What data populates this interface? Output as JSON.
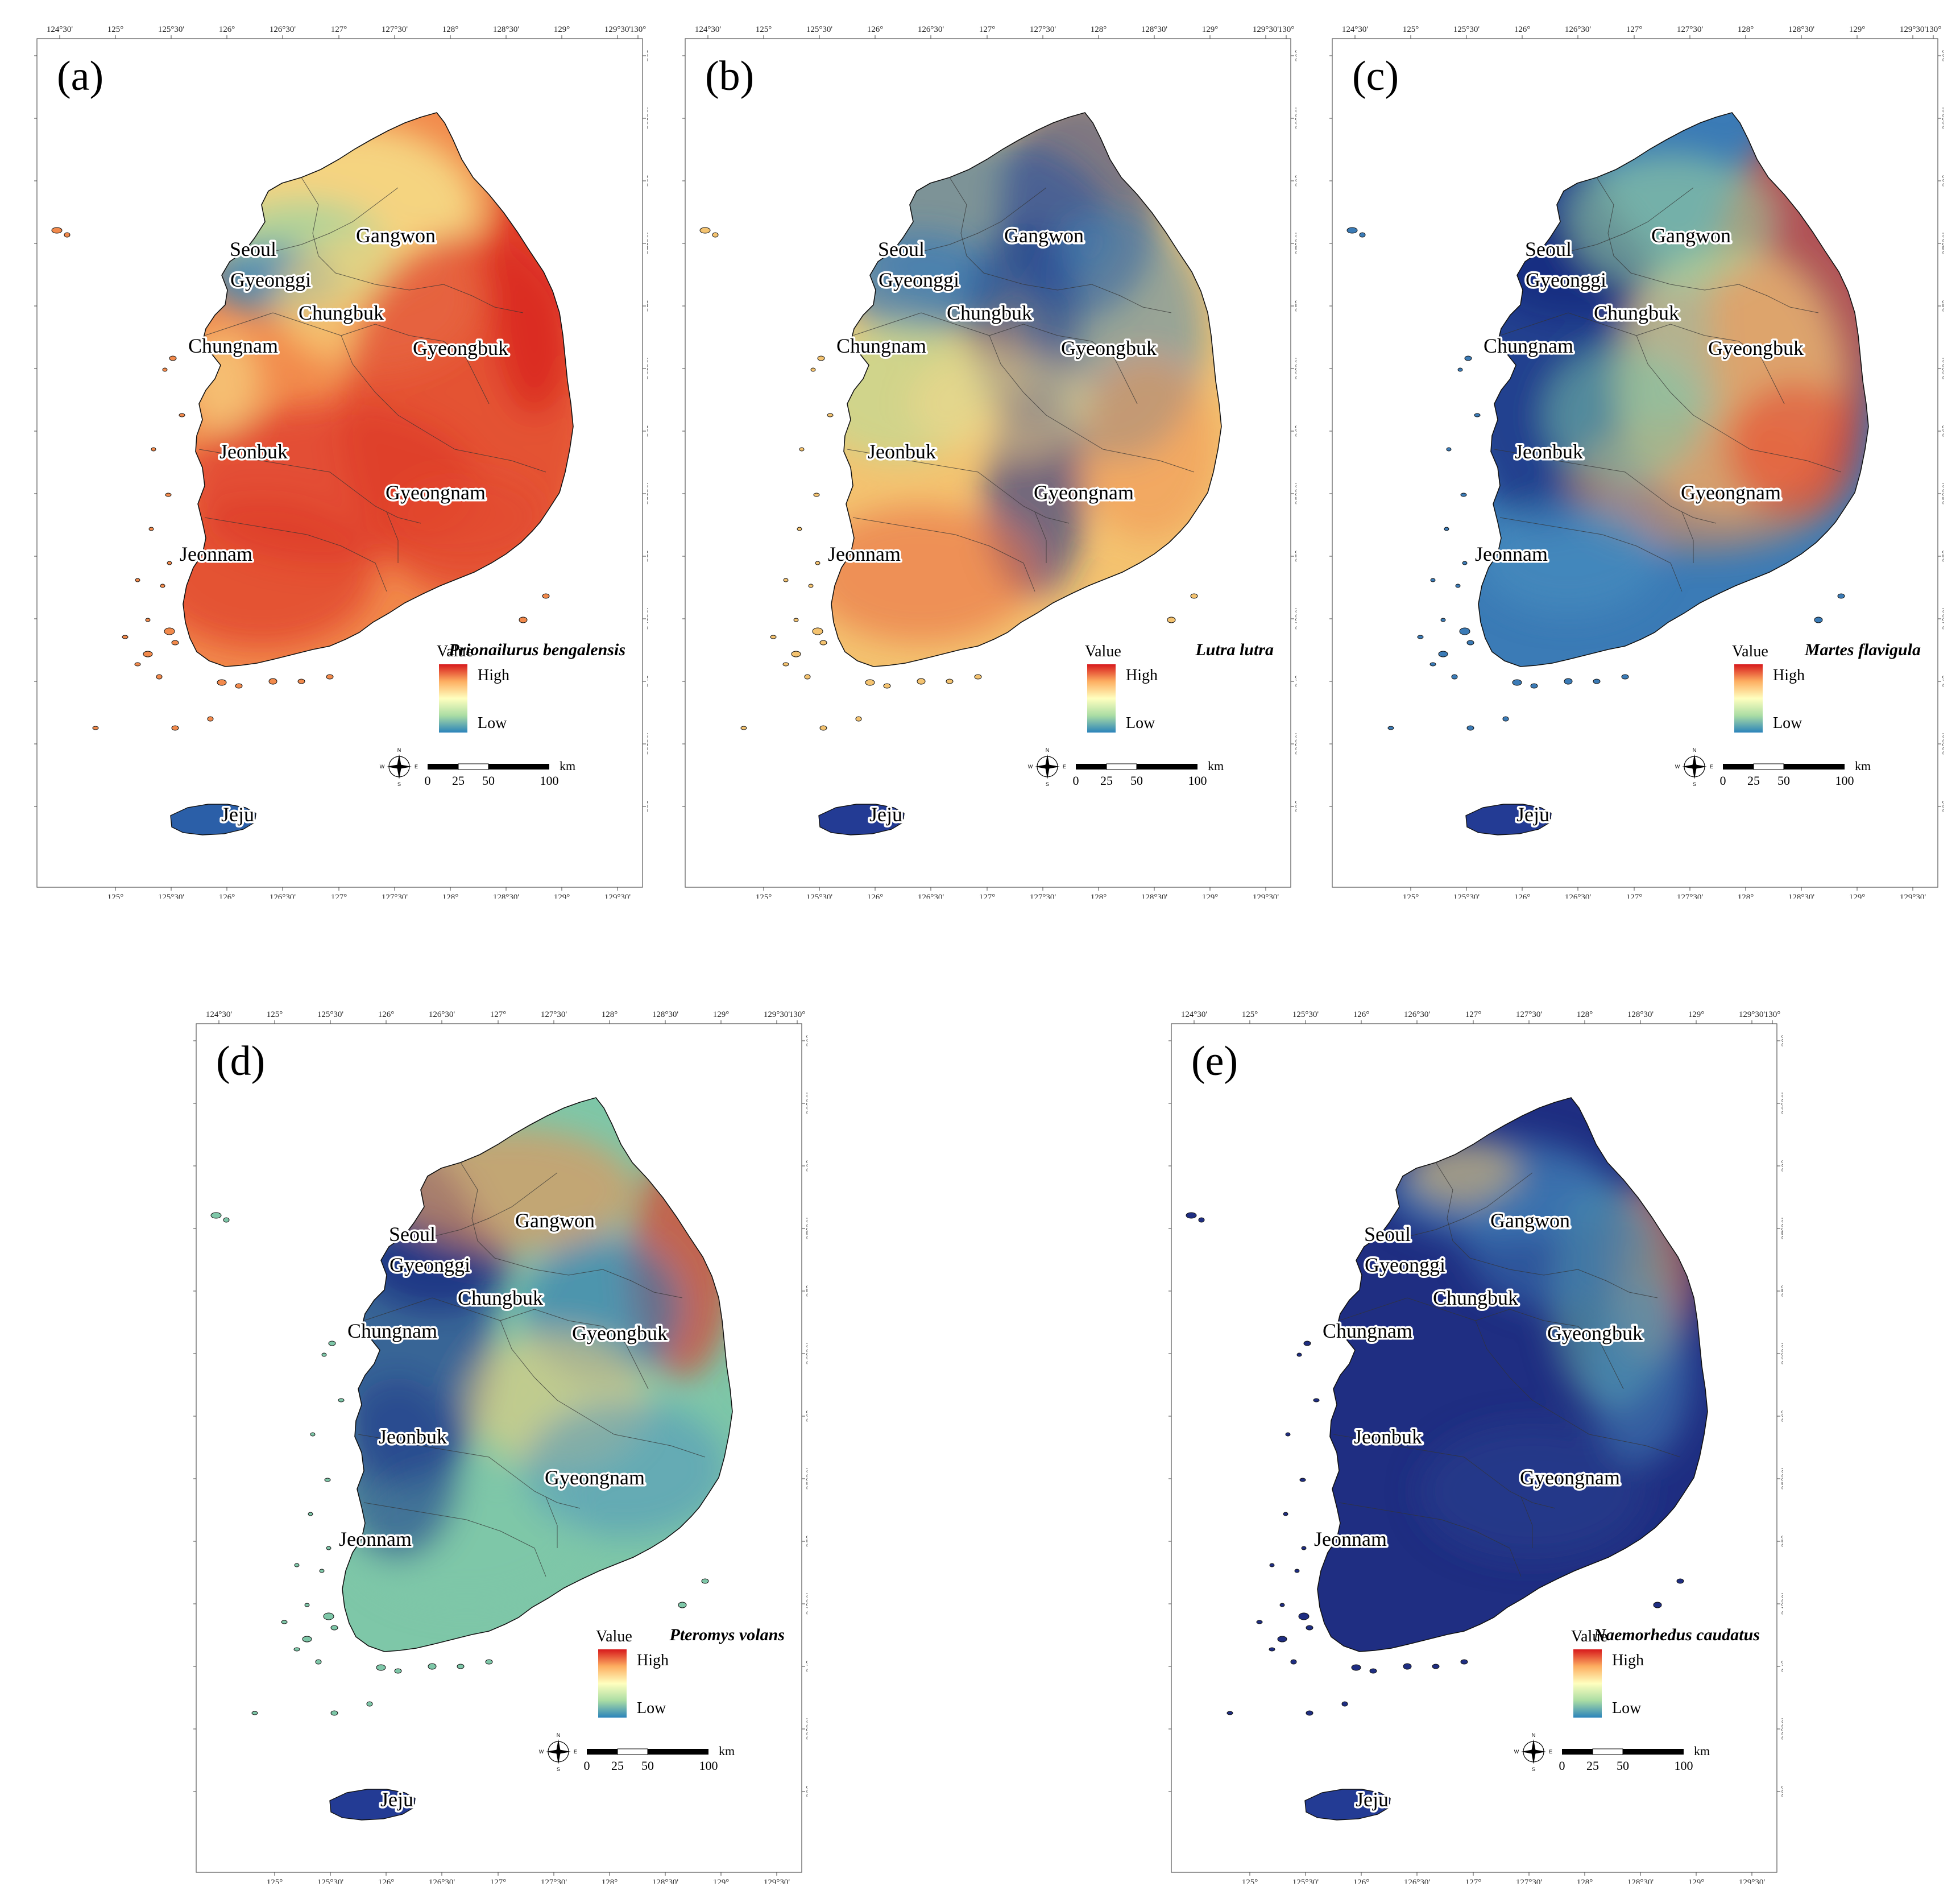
{
  "figure": {
    "lon_ticks": [
      "124°30'",
      "125°",
      "125°30'",
      "126°",
      "126°30'",
      "127°",
      "127°30'",
      "128°",
      "128°30'",
      "129°",
      "129°30'",
      "130°"
    ],
    "lon_ticks_bottom": [
      "125°",
      "125°30'",
      "126°",
      "126°30'",
      "127°",
      "127°30'",
      "128°",
      "128°30'",
      "129°",
      "129°30'"
    ],
    "lat_ticks": [
      "39°",
      "38°30'",
      "38°",
      "37°30'",
      "37°",
      "36°30'",
      "36°",
      "35°30'",
      "35°",
      "34°30'",
      "34°",
      "33°30'",
      "33°"
    ],
    "region_labels": [
      "Gangwon",
      "Seoul",
      "Gyeonggi",
      "Chungbuk",
      "Chungnam",
      "Gyeongbuk",
      "Jeonbuk",
      "Gyeongnam",
      "Jeonnam",
      "Jeju"
    ],
    "legend": {
      "title": "Value",
      "high": "High",
      "low": "Low"
    },
    "scale": {
      "unit": "km",
      "ticks": [
        "0",
        "25",
        "50",
        "100"
      ]
    },
    "compass": {
      "n": "N",
      "s": "S",
      "e": "E",
      "w": "W"
    },
    "colors": {
      "ramp": [
        "#d7191c",
        "#fdae61",
        "#ffffbf",
        "#abdda4",
        "#2b83ba",
        "#1a1a7a"
      ],
      "boundary": "#333333"
    }
  },
  "panels": [
    {
      "letter": "(a)",
      "species": "Prionailurus bengalensis",
      "pattern": "high-south-east"
    },
    {
      "letter": "(b)",
      "species": "Lutra lutra",
      "pattern": "mixed-mid"
    },
    {
      "letter": "(c)",
      "species": "Martes flavigula",
      "pattern": "high-east"
    },
    {
      "letter": "(d)",
      "species": "Pteromys volans",
      "pattern": "mid-north-east"
    },
    {
      "letter": "(e)",
      "species": "Naemorhedus caudatus",
      "pattern": "low-mostly"
    }
  ]
}
